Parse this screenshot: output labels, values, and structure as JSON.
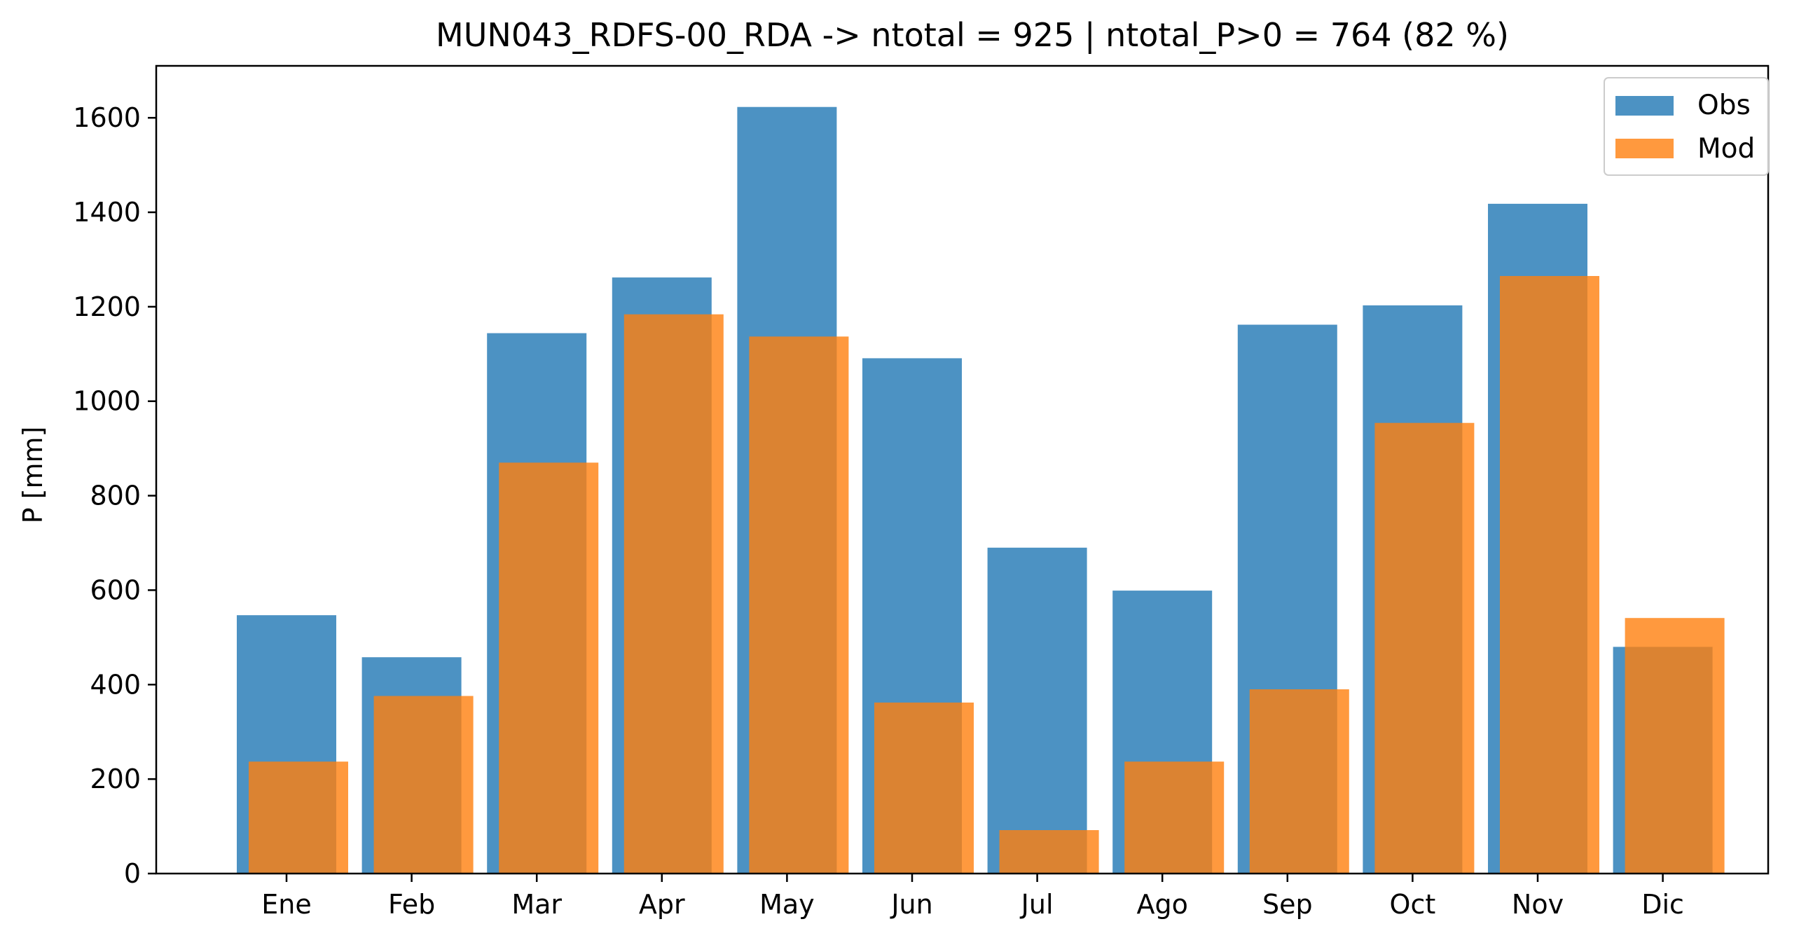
{
  "chart_data": {
    "type": "bar",
    "title": "MUN043_RDFS-00_RDA -> ntotal = 925 | ntotal_P>0 = 764 (82 %)",
    "xlabel": "",
    "ylabel": "P [mm]",
    "ylim": [
      0,
      1710
    ],
    "yticks": [
      0,
      200,
      400,
      600,
      800,
      1000,
      1200,
      1400,
      1600
    ],
    "categories": [
      "Ene",
      "Feb",
      "Mar",
      "Apr",
      "May",
      "Jun",
      "Jul",
      "Ago",
      "Sep",
      "Oct",
      "Nov",
      "Dic"
    ],
    "series": [
      {
        "name": "Obs",
        "color": "#1f77b4",
        "opacity": 0.8,
        "values": [
          547,
          458,
          1144,
          1262,
          1623,
          1091,
          690,
          599,
          1162,
          1203,
          1418,
          480
        ]
      },
      {
        "name": "Mod",
        "color": "#ff7f0e",
        "opacity": 0.8,
        "values": [
          237,
          376,
          870,
          1184,
          1137,
          362,
          92,
          237,
          390,
          954,
          1265,
          541
        ]
      }
    ],
    "legend": "top-right",
    "grid": false
  }
}
